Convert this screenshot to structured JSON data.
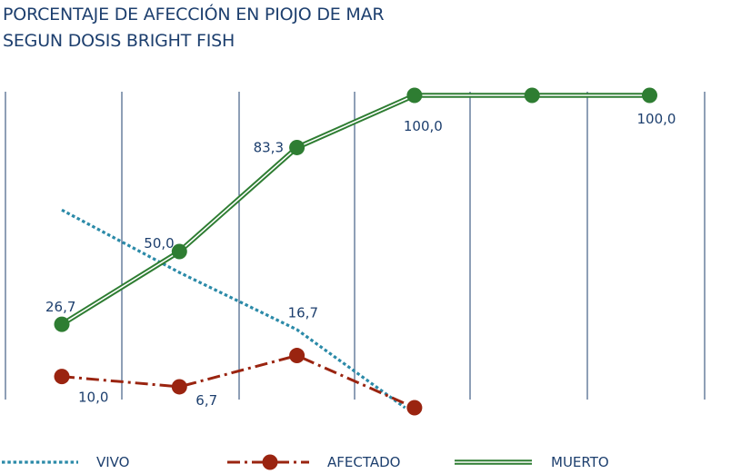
{
  "chart_data": {
    "type": "line",
    "title_lines": [
      "PORCENTAJE DE AFECCIÓN EN PIOJO DE MAR",
      "SEGUN DOSIS BRIGHT FISH"
    ],
    "ylim": [
      0,
      100
    ],
    "grid": "vertical",
    "legend_position": "bottom",
    "series": [
      {
        "name": "VIVO",
        "color": "#2b8aa8",
        "style": "dotted",
        "x": [
          1,
          2,
          3,
          3.92
        ],
        "values": [
          63.3,
          43.3,
          25.0,
          0.0
        ],
        "labels": []
      },
      {
        "name": "AFECTADO",
        "color": "#9a2410",
        "style": "dash-dot-marker",
        "x": [
          1,
          2,
          3,
          4
        ],
        "values": [
          10.0,
          6.7,
          16.7,
          0.0
        ],
        "labels": [
          "10,0",
          "6,7",
          "16,7",
          ""
        ]
      },
      {
        "name": "MUERTO",
        "color": "#2e7d32",
        "style": "double-marker",
        "x": [
          1,
          2,
          3,
          4,
          5,
          6
        ],
        "values": [
          26.7,
          50.0,
          83.3,
          100.0,
          100.0,
          100.0
        ],
        "labels": [
          "26,7",
          "50,0",
          "83,3",
          "100,0",
          "",
          "100,0"
        ]
      }
    ]
  }
}
